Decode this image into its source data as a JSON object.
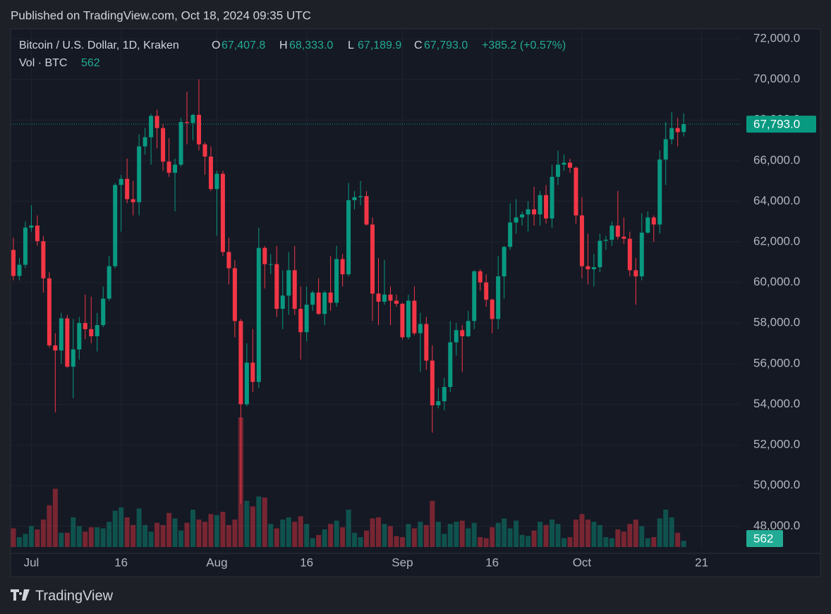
{
  "header": {
    "published": "Published on TradingView.com, Oct 18, 2024 09:35 UTC"
  },
  "brand": "TradingView",
  "chart_data": {
    "type": "candlestick",
    "symbol": "Bitcoin / U.S. Dollar, 1D, Kraken",
    "ohlc_legend": [
      {
        "label": "O",
        "value": "67,407.8"
      },
      {
        "label": "H",
        "value": "68,333.0"
      },
      {
        "label": "L",
        "value": "67,189.9"
      },
      {
        "label": "C",
        "value": "67,793.0"
      }
    ],
    "change": "+385.2 (+0.57%)",
    "volume_label": "Vol · BTC",
    "up_color": "#089981",
    "down_color": "#f23645",
    "x": [
      "2024-06-28",
      "2024-06-29",
      "2024-06-30",
      "2024-07-01",
      "2024-07-02",
      "2024-07-03",
      "2024-07-04",
      "2024-07-05",
      "2024-07-06",
      "2024-07-07",
      "2024-07-08",
      "2024-07-09",
      "2024-07-10",
      "2024-07-11",
      "2024-07-12",
      "2024-07-13",
      "2024-07-14",
      "2024-07-15",
      "2024-07-16",
      "2024-07-17",
      "2024-07-18",
      "2024-07-19",
      "2024-07-20",
      "2024-07-21",
      "2024-07-22",
      "2024-07-23",
      "2024-07-24",
      "2024-07-25",
      "2024-07-26",
      "2024-07-27",
      "2024-07-28",
      "2024-07-29",
      "2024-07-30",
      "2024-07-31",
      "2024-08-01",
      "2024-08-02",
      "2024-08-03",
      "2024-08-04",
      "2024-08-05",
      "2024-08-06",
      "2024-08-07",
      "2024-08-08",
      "2024-08-09",
      "2024-08-10",
      "2024-08-11",
      "2024-08-12",
      "2024-08-13",
      "2024-08-14",
      "2024-08-15",
      "2024-08-16",
      "2024-08-17",
      "2024-08-18",
      "2024-08-19",
      "2024-08-20",
      "2024-08-21",
      "2024-08-22",
      "2024-08-23",
      "2024-08-24",
      "2024-08-25",
      "2024-08-26",
      "2024-08-27",
      "2024-08-28",
      "2024-08-29",
      "2024-08-30",
      "2024-08-31",
      "2024-09-01",
      "2024-09-02",
      "2024-09-03",
      "2024-09-04",
      "2024-09-05",
      "2024-09-06",
      "2024-09-07",
      "2024-09-08",
      "2024-09-09",
      "2024-09-10",
      "2024-09-11",
      "2024-09-12",
      "2024-09-13",
      "2024-09-14",
      "2024-09-15",
      "2024-09-16",
      "2024-09-17",
      "2024-09-18",
      "2024-09-19",
      "2024-09-20",
      "2024-09-21",
      "2024-09-22",
      "2024-09-23",
      "2024-09-24",
      "2024-09-25",
      "2024-09-26",
      "2024-09-27",
      "2024-09-28",
      "2024-09-29",
      "2024-09-30",
      "2024-10-01",
      "2024-10-02",
      "2024-10-03",
      "2024-10-04",
      "2024-10-05",
      "2024-10-06",
      "2024-10-07",
      "2024-10-08",
      "2024-10-09",
      "2024-10-10",
      "2024-10-11",
      "2024-10-12",
      "2024-10-13",
      "2024-10-14",
      "2024-10-15",
      "2024-10-16",
      "2024-10-17",
      "2024-10-18"
    ],
    "open": [
      61600,
      60320,
      60870,
      62700,
      62800,
      62030,
      60200,
      56900,
      56650,
      58230,
      55850,
      56700,
      58000,
      57700,
      57350,
      57900,
      59200,
      60800,
      64800,
      65100,
      64100,
      63950,
      66700,
      67150,
      68200,
      67600,
      65950,
      65400,
      65800,
      67900,
      67850,
      68250,
      66800,
      66200,
      64600,
      65350,
      61500,
      60700,
      58100,
      54000,
      56050,
      55100,
      61700,
      60900,
      60900,
      58700,
      59350,
      60600,
      58700,
      57550,
      58900,
      59500,
      58450,
      59500,
      59000,
      61150,
      60400,
      64050,
      64200,
      64250,
      62850,
      59450,
      59050,
      59400,
      59100,
      58950,
      57300,
      59100,
      57500,
      57950,
      56150,
      53950,
      54150,
      54850,
      57050,
      57650,
      57350,
      58100,
      60550,
      60000,
      59150,
      58200,
      60300,
      61750,
      62950,
      63200,
      63350,
      63600,
      63350,
      64300,
      63150,
      65200,
      65800,
      65900,
      65650,
      63300,
      60800,
      60650,
      60750,
      62050,
      62100,
      62800,
      62250,
      62150,
      60600,
      60300,
      62450,
      63200,
      62850,
      66050,
      67050,
      67600,
      67407.8
    ],
    "high": [
      62200,
      61200,
      63000,
      63800,
      63300,
      62300,
      60500,
      57500,
      58500,
      58400,
      58200,
      58300,
      59400,
      59300,
      58500,
      59800,
      61300,
      64900,
      65300,
      66100,
      65000,
      67300,
      67600,
      68300,
      68500,
      67800,
      67100,
      66100,
      68100,
      69400,
      68300,
      70000,
      66900,
      66700,
      65500,
      65500,
      62200,
      61100,
      58200,
      57000,
      57700,
      62700,
      61800,
      61400,
      61800,
      60600,
      61500,
      61800,
      59800,
      59800,
      59600,
      60200,
      59600,
      61300,
      61800,
      61400,
      64900,
      64500,
      65000,
      64500,
      63200,
      61200,
      61100,
      59800,
      59400,
      59000,
      59400,
      59800,
      58500,
      58300,
      56900,
      54800,
      55300,
      58100,
      58000,
      57900,
      58600,
      60600,
      60650,
      60400,
      59200,
      61300,
      61800,
      63900,
      64100,
      63500,
      64000,
      64700,
      64500,
      64800,
      65800,
      66500,
      66300,
      66100,
      65700,
      64200,
      62400,
      61400,
      62400,
      62300,
      63000,
      64500,
      63200,
      62500,
      61200,
      63400,
      63500,
      63300,
      66500,
      67900,
      68400,
      68100,
      68333
    ],
    "low": [
      60100,
      60100,
      60700,
      62500,
      61800,
      59500,
      56800,
      53600,
      56000,
      55800,
      54300,
      56200,
      57200,
      57000,
      56600,
      57800,
      59100,
      60700,
      62500,
      63900,
      63300,
      63300,
      66300,
      65800,
      66600,
      65500,
      65200,
      63500,
      65700,
      66800,
      67000,
      66500,
      65300,
      64500,
      62300,
      61300,
      59900,
      57300,
      49100,
      53900,
      54600,
      54800,
      59700,
      60400,
      58300,
      57700,
      58400,
      58400,
      56200,
      57100,
      58600,
      58400,
      57900,
      58600,
      58800,
      59800,
      60300,
      63600,
      63800,
      62800,
      58100,
      57900,
      58900,
      57900,
      58800,
      57200,
      57200,
      57400,
      55600,
      55700,
      52600,
      53800,
      53700,
      54600,
      56400,
      55600,
      57300,
      57700,
      59600,
      58800,
      57500,
      57700,
      59200,
      61600,
      62400,
      62800,
      62500,
      62800,
      62800,
      62900,
      62700,
      64800,
      65500,
      65400,
      62900,
      60200,
      59900,
      59800,
      60500,
      61600,
      61800,
      62100,
      61900,
      60300,
      58900,
      60100,
      62400,
      62000,
      62400,
      64800,
      66800,
      66700,
      67189.9
    ],
    "close": [
      60320,
      60870,
      62700,
      62800,
      62030,
      60200,
      56900,
      56650,
      58230,
      55850,
      56700,
      58000,
      57700,
      57350,
      57900,
      59200,
      60800,
      64800,
      65100,
      64100,
      63950,
      66700,
      67150,
      68200,
      67600,
      65950,
      65400,
      65800,
      67900,
      67850,
      68250,
      66800,
      66200,
      64600,
      65350,
      61500,
      60700,
      58100,
      54000,
      56050,
      55100,
      61700,
      60900,
      60900,
      58700,
      59350,
      60600,
      58700,
      57550,
      58900,
      59500,
      58450,
      59500,
      59000,
      61150,
      60400,
      64050,
      64200,
      64250,
      62850,
      59450,
      59050,
      59400,
      59100,
      58950,
      57300,
      59100,
      57500,
      57950,
      56150,
      53950,
      54150,
      54850,
      57050,
      57650,
      57350,
      58100,
      60550,
      60000,
      59150,
      58200,
      60300,
      61750,
      62950,
      63200,
      63350,
      63600,
      63350,
      64300,
      63150,
      65200,
      65800,
      65900,
      65650,
      63300,
      60800,
      60650,
      60750,
      62050,
      62100,
      62800,
      62250,
      62150,
      60600,
      60300,
      62450,
      63200,
      62850,
      66050,
      67050,
      67600,
      67400,
      67793
    ],
    "volume": [
      1700,
      900,
      1200,
      1900,
      1600,
      2500,
      3800,
      5300,
      1300,
      1300,
      2700,
      1900,
      1400,
      1800,
      1800,
      1700,
      2300,
      3300,
      3600,
      2700,
      2000,
      3500,
      2000,
      1400,
      2200,
      2000,
      3100,
      2600,
      1500,
      2200,
      3400,
      2500,
      2300,
      3000,
      2900,
      3200,
      2000,
      2500,
      11800,
      4200,
      3700,
      4600,
      4500,
      2100,
      1700,
      2500,
      2700,
      2300,
      2800,
      2100,
      800,
      1100,
      1600,
      2100,
      2400,
      1800,
      3400,
      1300,
      900,
      1500,
      2600,
      2700,
      2100,
      1900,
      1000,
      900,
      2100,
      1700,
      2300,
      2000,
      4200,
      2300,
      1200,
      2100,
      2300,
      2400,
      1700,
      2200,
      900,
      800,
      1800,
      2200,
      2600,
      1700,
      2400,
      1100,
      1000,
      1500,
      2300,
      2000,
      2500,
      2100,
      800,
      900,
      2500,
      3000,
      2500,
      2300,
      2000,
      900,
      800,
      1600,
      1400,
      2100,
      2500,
      1900,
      800,
      900,
      2600,
      3400,
      2700,
      1300,
      562
    ],
    "ylim": [
      46900,
      72450
    ],
    "yticks": [
      {
        "value": 48000,
        "label": "48,000.0"
      },
      {
        "value": 50000,
        "label": "50,000.0"
      },
      {
        "value": 52000,
        "label": "52,000.0"
      },
      {
        "value": 54000,
        "label": "54,000.0"
      },
      {
        "value": 56000,
        "label": "56,000.0"
      },
      {
        "value": 58000,
        "label": "58,000.0"
      },
      {
        "value": 60000,
        "label": "60,000.0"
      },
      {
        "value": 62000,
        "label": "62,000.0"
      },
      {
        "value": 64000,
        "label": "64,000.0"
      },
      {
        "value": 66000,
        "label": "66,000.0"
      },
      {
        "value": 68000,
        "label": "68,000.0"
      },
      {
        "value": 70000,
        "label": "70,000.0"
      },
      {
        "value": 72000,
        "label": "72,000.0"
      }
    ],
    "xlim": [
      "2024-06-27",
      "2024-10-28"
    ],
    "xticks": [
      {
        "value": "2024-07-01",
        "label": "Jul"
      },
      {
        "value": "2024-07-16",
        "label": "16"
      },
      {
        "value": "2024-08-01",
        "label": "Aug"
      },
      {
        "value": "2024-08-16",
        "label": "16"
      },
      {
        "value": "2024-09-01",
        "label": "Sep"
      },
      {
        "value": "2024-09-16",
        "label": "16"
      },
      {
        "value": "2024-10-01",
        "label": "Oct"
      },
      {
        "value": "2024-10-21",
        "label": "21"
      }
    ],
    "grid": true
  }
}
